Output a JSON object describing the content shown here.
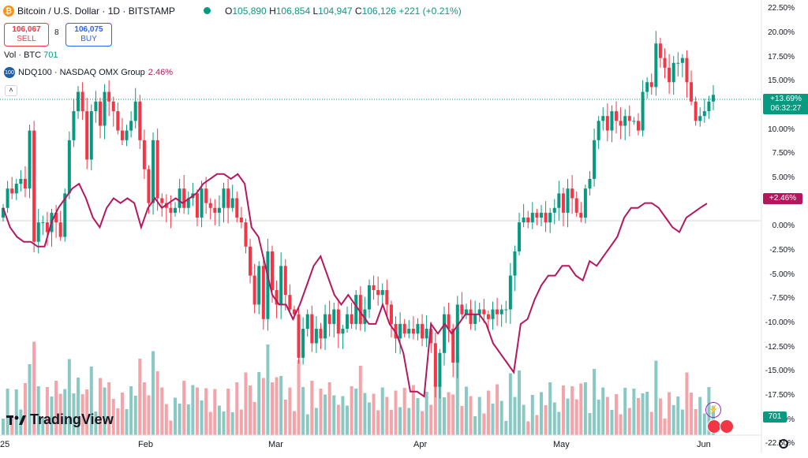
{
  "header": {
    "symbol_title": "Bitcoin / U.S. Dollar · 1D · BITSTAMP",
    "open_label": "O",
    "open": "105,890",
    "high_label": "H",
    "high": "106,854",
    "low_label": "L",
    "low": "104,947",
    "close_label": "C",
    "close": "106,126",
    "change": "+221 (+0.21%)"
  },
  "trade": {
    "sell_price": "106,067",
    "sell_label": "SELL",
    "spread": "8",
    "buy_price": "106,075",
    "buy_label": "BUY"
  },
  "indicators": {
    "vol_label": "Vol · BTC",
    "vol_value": "701",
    "compare_icon": "100",
    "compare_label": "NDQ100 · NASDAQ OMX Group",
    "compare_value": "2.46%"
  },
  "badges": {
    "price_pct": "+13.69%",
    "countdown": "06:32:27",
    "ndq_pct": "+2.46%",
    "volume": "701"
  },
  "logo": "TradingView",
  "colors": {
    "up": "#089981",
    "down": "#f23645",
    "compare": "#b5175e",
    "volUp": "#89c9c3",
    "volDown": "#f4a3a8"
  },
  "chart_data": {
    "type": "line",
    "title": "Bitcoin / U.S. Dollar · 1D · BITSTAMP",
    "y_axis": {
      "unit": "percent",
      "range": [
        -21.5,
        23.5
      ],
      "ticks": [
        "22.50%",
        "20.00%",
        "17.50%",
        "15.00%",
        "12.50%",
        "10.00%",
        "7.50%",
        "5.00%",
        "2.50%",
        "0.00%",
        "-2.50%",
        "-5.00%",
        "-7.50%",
        "-10.00%",
        "-12.50%",
        "-15.00%",
        "-17.50%",
        "-20.00%",
        "-22.50%"
      ]
    },
    "x_axis": {
      "ticks": [
        "25",
        "Feb",
        "Mar",
        "Apr",
        "May",
        "Jun"
      ]
    },
    "series": [
      {
        "name": "Bitcoin / U.S. Dollar",
        "style": "candles",
        "values": [
          2.0,
          4.0,
          3.5,
          4.5,
          5.0,
          4.0,
          10.0,
          -1.5,
          0.5,
          0.5,
          -0.5,
          1.5,
          0.5,
          -1.0,
          3.5,
          9.0,
          12.0,
          14.0,
          12.0,
          7.0,
          12.0,
          13.0,
          10.5,
          14.0,
          13.0,
          12.0,
          10.0,
          9.0,
          10.0,
          11.0,
          13.0,
          9.0,
          6.0,
          2.5,
          9.0,
          3.0,
          2.5,
          2.0,
          1.5,
          2.0,
          4.0,
          2.0,
          3.0,
          3.5,
          1.0,
          4.0,
          2.5,
          2.0,
          1.5,
          2.0,
          4.0,
          2.0,
          3.0,
          1.0,
          0.5,
          -2.0,
          -5.0,
          -8.0,
          -4.0,
          -9.5,
          -2.5,
          -6.5,
          -8.0,
          -4.0,
          -7.0,
          -8.5,
          -9.0,
          -13.5,
          -10.5,
          -9.0,
          -12.0,
          -10.5,
          -11.5,
          -9.0,
          -10.0,
          -8.5,
          -11.0,
          -10.5,
          -9.0,
          -10.0,
          -7.0,
          -10.0,
          -8.5,
          -6.0,
          -6.5,
          -7.0,
          -6.5,
          -8.0,
          -10.0,
          -11.5,
          -10.0,
          -11.0,
          -10.5,
          -11.0,
          -10.0,
          -11.5,
          -10.5,
          -12.0,
          -16.5,
          -13.0,
          -9.0,
          -10.5,
          -14.0,
          -8.0,
          -9.0,
          -8.5,
          -10.0,
          -9.0,
          -8.5,
          -9.0,
          -9.5,
          -8.5,
          -9.0,
          -8.5,
          -8.5,
          -5.0,
          -2.5,
          0.5,
          1.0,
          0.5,
          1.5,
          1.0,
          1.5,
          0.5,
          1.5,
          2.0,
          3.5,
          1.5,
          4.0,
          3.0,
          1.5,
          1.0,
          4.0,
          5.0,
          9.0,
          11.0,
          11.5,
          10.0,
          12.0,
          11.0,
          10.5,
          11.5,
          11.0,
          11.0,
          10.0,
          14.0,
          15.0,
          14.5,
          19.0,
          17.5,
          16.5,
          15.0,
          17.0,
          17.0,
          17.5,
          15.0,
          13.0,
          11.0,
          11.5,
          12.0,
          13.0,
          13.69
        ]
      },
      {
        "name": "NDQ100 · NASDAQ OMX Group",
        "style": "line",
        "values": [
          2,
          0,
          -1,
          -1.5,
          -1.5,
          -2,
          -2,
          0.5,
          2,
          3,
          4,
          4.5,
          3,
          1,
          0,
          2,
          3,
          2.5,
          3,
          2.5,
          0,
          2,
          3,
          2,
          2.5,
          3,
          2.5,
          3,
          3.5,
          4.5,
          5,
          5.5,
          5.5,
          5,
          5.5,
          4.5,
          0,
          -1,
          -4,
          -7,
          -8,
          -8,
          -9.5,
          -8,
          -6,
          -4,
          -3,
          -5,
          -7,
          -8,
          -7,
          -8,
          -9,
          -10,
          -10,
          -8,
          -10,
          -11,
          -13,
          -17,
          -17,
          -17.5,
          -10,
          -11,
          -10,
          -11,
          -10,
          -9,
          -9,
          -9,
          -10,
          -12,
          -13,
          -14,
          -15,
          -10,
          -9.5,
          -7.5,
          -6,
          -5,
          -5,
          -4,
          -4,
          -5,
          -5.5,
          -3.5,
          -4,
          -3,
          -2,
          -1,
          1,
          2,
          2,
          2.5,
          2.5,
          2,
          1,
          0,
          -0.5,
          1,
          1.5,
          2,
          2.46
        ]
      }
    ],
    "volume": {
      "name": "Vol · BTC",
      "last": 701
    },
    "grid": "off",
    "legend": "top-left"
  }
}
